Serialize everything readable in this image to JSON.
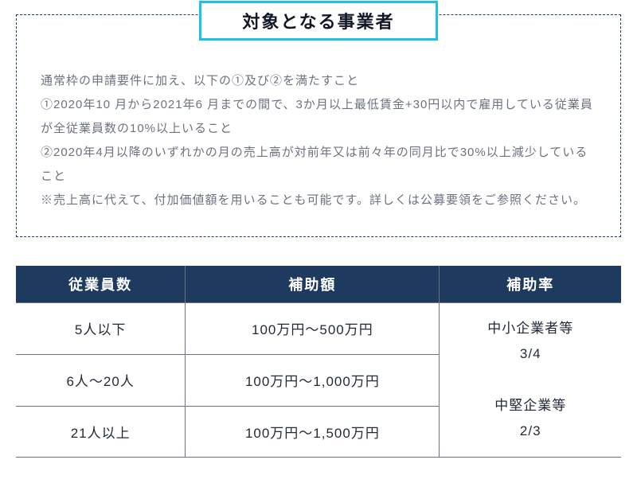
{
  "section": {
    "title": "対象となる事業者",
    "paragraphs": [
      "通常枠の申請要件に加え、以下の①及び②を満たすこと",
      "①2020年10 月から2021年6 月までの間で、3か月以上最低賃金+30円以内で雇用している従業員が全従業員数の10%以上いること",
      "②2020年4月以降のいずれかの月の売上高が対前年又は前々年の同月比で30%以上減少していること",
      "※売上高に代えて、付加価値額を用いることも可能です。詳しくは公募要領をご参照ください。"
    ]
  },
  "table": {
    "type": "table",
    "header_bg": "#1f3a5f",
    "header_color": "#ffffff",
    "border_color": "#6b7280",
    "cell_color": "#1f2937",
    "columns": [
      "従業員数",
      "補助額",
      "補助率"
    ],
    "column_widths_pct": [
      28,
      42,
      30
    ],
    "rows": [
      {
        "employees": "5人以下",
        "amount": "100万円～500万円"
      },
      {
        "employees": "6人～20人",
        "amount": "100万円～1,000万円"
      },
      {
        "employees": "21人以上",
        "amount": "100万円～1,500万円"
      }
    ],
    "rate_cell": {
      "line1": "中小企業者等",
      "line2": "3/4",
      "line3": "中堅企業等",
      "line4": "2/3"
    }
  },
  "styling": {
    "title_border_color": "#1cc1e6",
    "title_font_size_pt": 16,
    "body_text_color": "#6b7280",
    "body_font_size_pt": 11,
    "dashed_border_color": "#1a3a6e",
    "background_color": "#ffffff"
  }
}
